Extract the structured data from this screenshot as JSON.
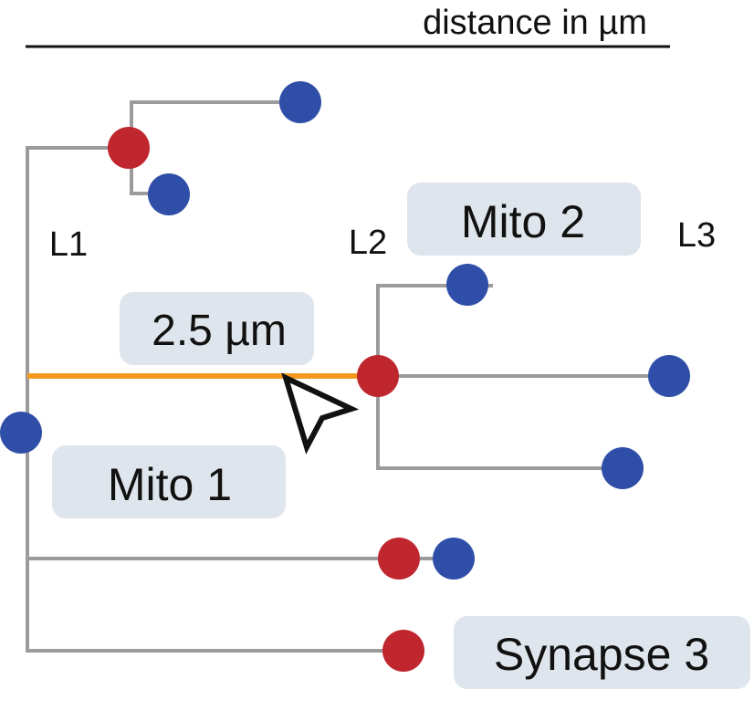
{
  "header": {
    "axis_label": "distance in µm"
  },
  "levels": {
    "l1": "L1",
    "l2": "L2",
    "l3": "L3"
  },
  "labels": {
    "mito_1": "Mito 1",
    "mito_2": "Mito 2",
    "synapse_3": "Synapse 3",
    "distance": "2.5 µm"
  },
  "colors": {
    "branch": "#9b9b9b",
    "highlight": "#f39a1e",
    "red_node": "#c0262e",
    "blue_node": "#2f4ea8",
    "label_bg": "#dfe5ec",
    "text": "#111111"
  },
  "icons": {
    "cursor": "cursor-arrow-icon"
  }
}
